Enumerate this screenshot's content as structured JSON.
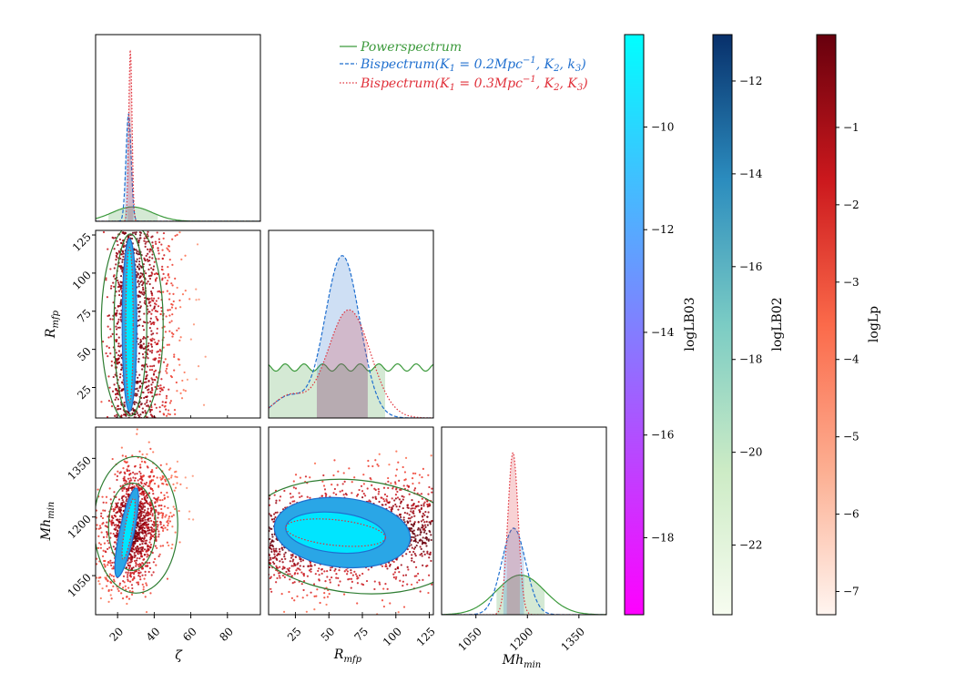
{
  "chart_data": {
    "type": "corner",
    "parameters": [
      {
        "key": "zeta",
        "label": "ζ",
        "ticks": [
          "20",
          "40",
          "60",
          "80"
        ],
        "range": [
          8,
          98
        ]
      },
      {
        "key": "Rmfp",
        "label": "R_mfp",
        "ticks": [
          "25",
          "50",
          "75",
          "100",
          "125"
        ],
        "range": [
          5,
          128
        ]
      },
      {
        "key": "Mhmin",
        "label": "Mh_min",
        "ticks": [
          "1050",
          "1200",
          "1350"
        ],
        "range": [
          950,
          1430
        ]
      }
    ],
    "axis_labels": {
      "zeta": "ζ",
      "Rmfp_main": "R",
      "Rmfp_sub": "mfp",
      "Mhmin_main": "Mh",
      "Mhmin_sub": "min"
    },
    "legend": [
      {
        "label": "Powerspectrum",
        "color": "#3c9a3c",
        "style": "solid"
      },
      {
        "label": "Bispectrum(K",
        "sub1": "1",
        "mid": " = 0.2Mpc",
        "sup": "−1",
        "tail": ", K",
        "sub2": "2",
        "end": ", k",
        "sub3": "3",
        "close": ")",
        "color": "#1f6fcf",
        "style": "dashed"
      },
      {
        "label": "Bispectrum(K",
        "sub1": "1",
        "mid": " = 0.3Mpc",
        "sup": "−1",
        "tail": ", K",
        "sub2": "2",
        "end": ", K",
        "sub3": "3",
        "close": ")",
        "color": "#e0303a",
        "style": "dotted"
      }
    ],
    "series": [
      {
        "name": "Powerspectrum",
        "color": "#3c9a3c",
        "marginals": {
          "zeta": {
            "mean": 28,
            "sd": 11,
            "interval": [
              15,
              42
            ]
          },
          "Rmfp": {
            "flat": true,
            "interval": [
              5,
              92
            ]
          },
          "Mhmin": {
            "mean": 1180,
            "sd": 70,
            "interval": [
              1110,
              1250
            ]
          }
        }
      },
      {
        "name": "Bispectrum K1=0.2",
        "color": "#1f6fcf",
        "marginals": {
          "zeta": {
            "mean": 26,
            "sd": 1.4,
            "interval": [
              24,
              29
            ]
          },
          "Rmfp": {
            "mean": 60,
            "sd": 13,
            "interval": [
              41,
              79
            ]
          },
          "Mhmin": {
            "mean": 1160,
            "sd": 35,
            "interval": [
              1130,
              1190
            ]
          }
        }
      },
      {
        "name": "Bispectrum K1=0.3",
        "color": "#e0303a",
        "marginals": {
          "zeta": {
            "mean": 27,
            "sd": 0.9,
            "interval": [
              25.5,
              28.5
            ]
          },
          "Rmfp": {
            "mean": 65,
            "sd": 16,
            "interval": [
              41,
              79
            ]
          },
          "Mhmin": {
            "mean": 1158,
            "sd": 15,
            "interval": [
              1140,
              1178
            ]
          }
        }
      }
    ],
    "colorbars": [
      {
        "label": "logLB03",
        "ticks": [
          "−10",
          "−12",
          "−14",
          "−16",
          "−18"
        ],
        "values": [
          -10,
          -12,
          -14,
          -16,
          -18
        ],
        "range": [
          -19.5,
          -8.2
        ],
        "colors": [
          "#ff00ff",
          "#00ffff"
        ]
      },
      {
        "label": "logLB02",
        "ticks": [
          "−12",
          "−14",
          "−16",
          "−18",
          "−20",
          "−22"
        ],
        "values": [
          -12,
          -14,
          -16,
          -18,
          -20,
          -22
        ],
        "range": [
          -23.5,
          -11
        ],
        "colors": [
          "#f7fcf0",
          "#08306b"
        ]
      },
      {
        "label": "logLp",
        "ticks": [
          "−1",
          "−2",
          "−3",
          "−4",
          "−5",
          "−6",
          "−7"
        ],
        "values": [
          -1,
          -2,
          -3,
          -4,
          -5,
          -6,
          -7
        ],
        "range": [
          -7.3,
          0.2
        ],
        "colors": [
          "#fff5f0",
          "#67000d"
        ]
      }
    ]
  }
}
